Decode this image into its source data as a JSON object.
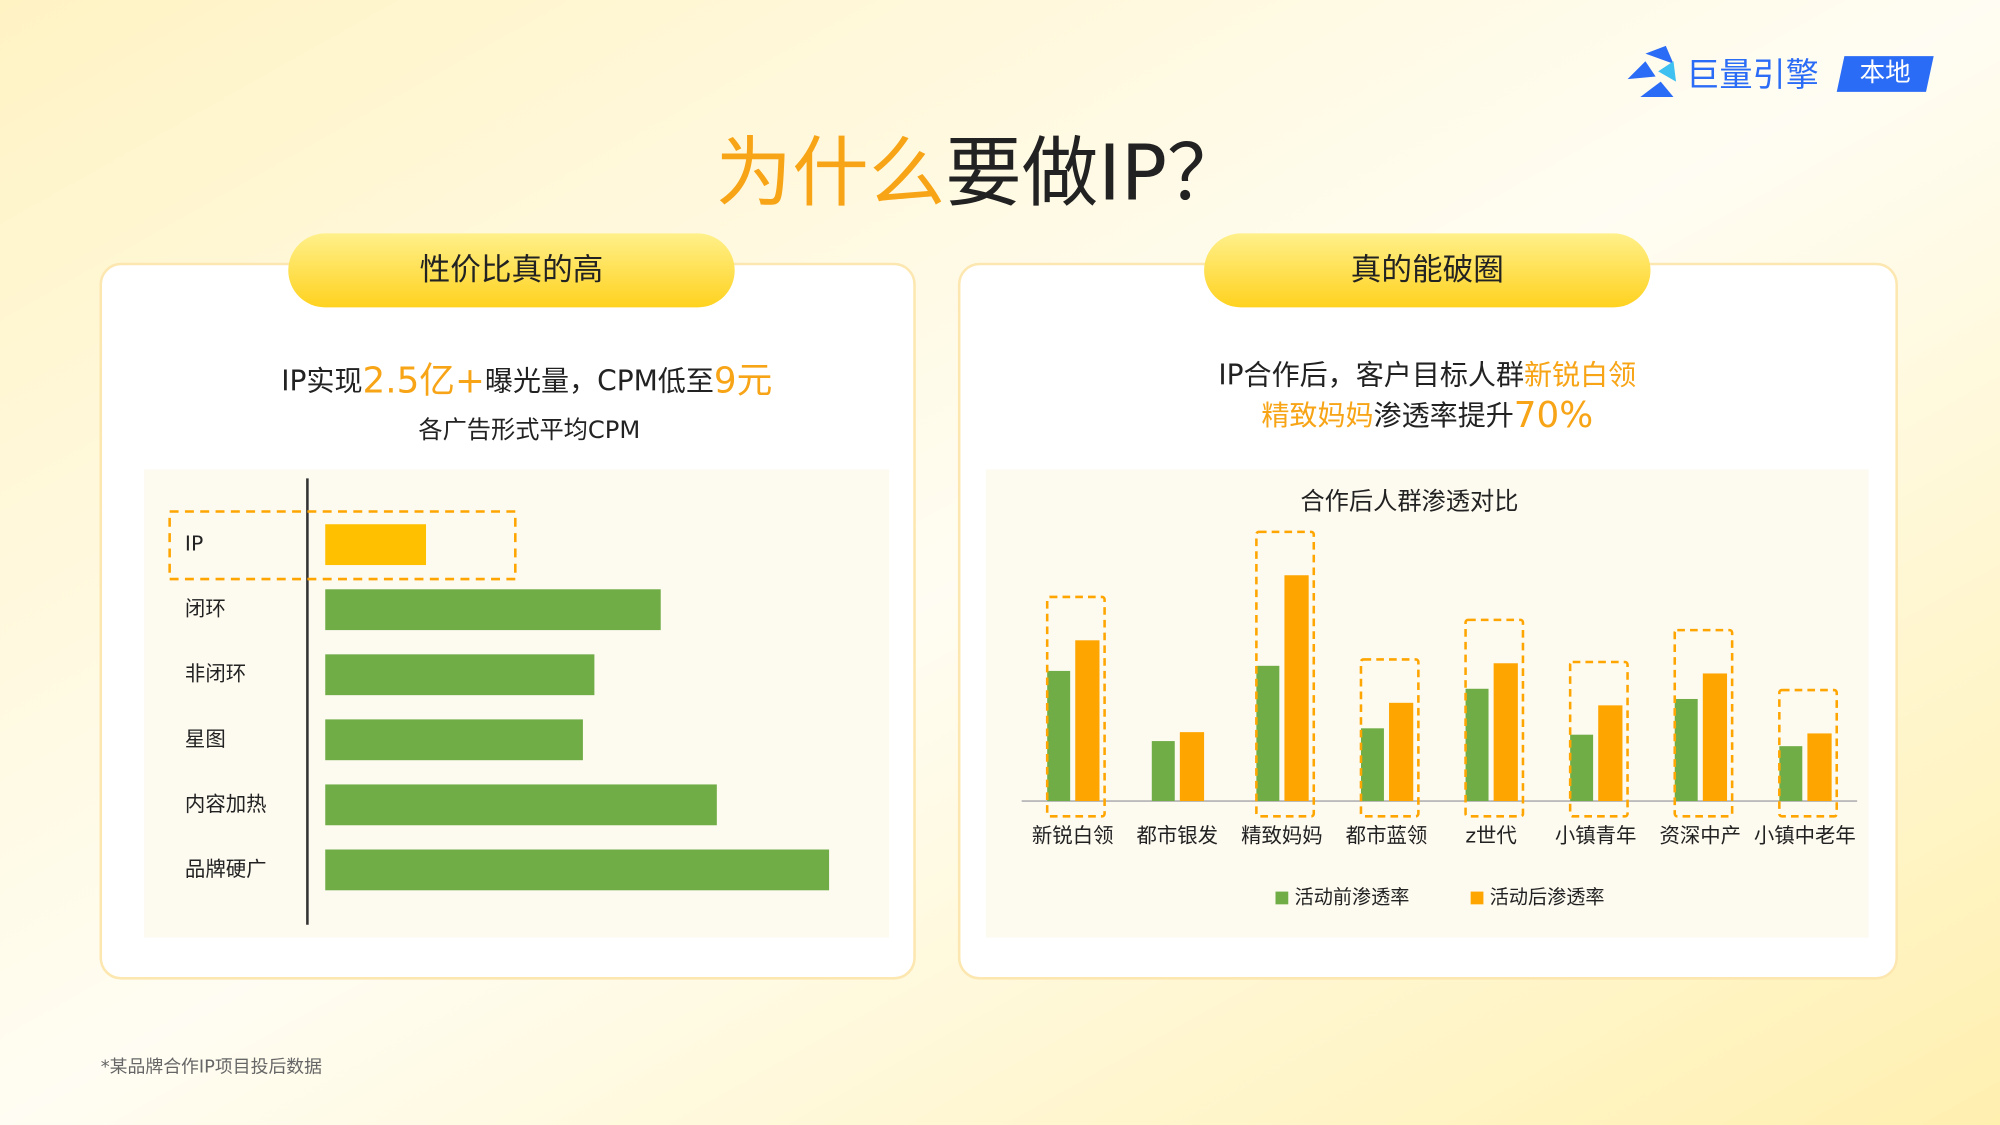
{
  "header": {
    "title": [
      {
        "text": "为什么",
        "accent": true
      },
      {
        "text": "要做IP？",
        "accent": false
      }
    ],
    "logo_name": "巨量引擎",
    "logo_badge": "本地"
  },
  "panels": [
    {
      "title": "性价比真的高",
      "subtitle": [
        [
          {
            "text": "IP实现",
            "accent": false,
            "large": false
          },
          {
            "text": "2.5亿+",
            "accent": true,
            "large": true
          },
          {
            "text": "曝光量，CPM低至",
            "accent": false,
            "large": false
          },
          {
            "text": "9元",
            "accent": true,
            "large": true
          }
        ]
      ]
    },
    {
      "title": "真的能破圈",
      "subtitle": [
        [
          {
            "text": "IP合作后，客户目标人群",
            "accent": false,
            "large": false
          },
          {
            "text": "新锐白领",
            "accent": true,
            "large": false
          }
        ],
        [
          {
            "text": "精致妈妈",
            "accent": true,
            "large": false
          },
          {
            "text": "渗透率提升",
            "accent": false,
            "large": false
          },
          {
            "text": "70%",
            "accent": true,
            "large": true
          }
        ]
      ]
    }
  ],
  "footnote": "*某品牌合作IP项目投后数据",
  "chart_data": [
    {
      "type": "hbar",
      "title": "各广告形式平均CPM",
      "categories": [
        "IP",
        "闭环",
        "非闭环",
        "星图",
        "内容加热",
        "品牌硬广"
      ],
      "values": [
        79,
        263,
        211,
        202,
        307,
        395
      ],
      "colors": [
        "#ffc000",
        "#70ad47",
        "#70ad47",
        "#70ad47",
        "#70ad47",
        "#70ad47"
      ],
      "xlim": [
        0,
        400
      ],
      "highlighted": [
        true,
        false,
        false,
        false,
        false,
        false
      ]
    },
    {
      "type": "bar",
      "title": "合作后人群渗透对比",
      "categories": [
        "新锐白领",
        "都市银发",
        "精致妈妈",
        "都市蓝领",
        "z世代",
        "小镇青年",
        "资深中产",
        "小镇中老年"
      ],
      "series": [
        {
          "name": "活动前渗透率",
          "color": "#70ad47",
          "values": [
            102,
            47,
            106,
            57,
            88,
            52,
            80,
            43
          ]
        },
        {
          "name": "活动后渗透率",
          "color": "#ffa500",
          "values": [
            126,
            54,
            177,
            77,
            108,
            75,
            100,
            53
          ]
        }
      ],
      "ylim": [
        0,
        200
      ],
      "highlighted": [
        true,
        false,
        true,
        true,
        true,
        true,
        true,
        true
      ]
    }
  ]
}
